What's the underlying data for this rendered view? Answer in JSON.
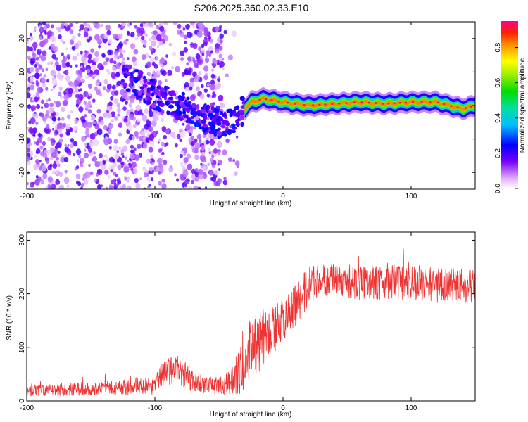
{
  "title": "S206.2025.360.02.33.E10",
  "chart_data": [
    {
      "type": "heatmap",
      "name": "spectrogram",
      "xlabel": "Height of straight line (km)",
      "ylabel": "Frequency (Hz)",
      "xlim": [
        -200,
        150
      ],
      "ylim": [
        -25,
        25
      ],
      "xticks": [
        -200,
        -100,
        0,
        100
      ],
      "yticks": [
        -20,
        -10,
        0,
        10,
        20
      ],
      "ridge": {
        "description_points": [
          [
            -120,
            8
          ],
          [
            -100,
            3
          ],
          [
            -80,
            0
          ],
          [
            -60,
            -4
          ],
          [
            -45,
            -6
          ],
          [
            -35,
            -3
          ],
          [
            -25,
            1
          ],
          [
            -15,
            2
          ],
          [
            0,
            1
          ],
          [
            20,
            0
          ],
          [
            40,
            0.5
          ],
          [
            60,
            1
          ],
          [
            80,
            0.5
          ],
          [
            100,
            1
          ],
          [
            120,
            1
          ],
          [
            140,
            -1
          ],
          [
            150,
            0
          ]
        ]
      }
    },
    {
      "type": "colorbar",
      "name": "amplitude-colorbar",
      "label": "Normalized spectral amplitude",
      "range": [
        0.0,
        0.95
      ],
      "ticks": [
        "0.0",
        "0.2",
        "0.4",
        "0.6",
        "0.8"
      ],
      "tick_values": [
        0.0,
        0.2,
        0.4,
        0.6,
        0.8
      ]
    },
    {
      "type": "line",
      "name": "snr-line",
      "xlabel": "Height of straight line (km)",
      "ylabel": "SNR (10 * v/v)",
      "xlim": [
        -200,
        150
      ],
      "ylim": [
        0,
        315
      ],
      "xticks": [
        -200,
        -100,
        0,
        100
      ],
      "yticks": [
        0,
        100,
        200,
        300
      ],
      "color": "#ee3333",
      "envelope": {
        "x": [
          -200,
          -150,
          -100,
          -95,
          -90,
          -85,
          -80,
          -75,
          -70,
          -60,
          -50,
          -40,
          -35,
          -30,
          -25,
          -20,
          -10,
          0,
          10,
          20,
          30,
          40,
          60,
          80,
          100,
          120,
          150
        ],
        "mean": [
          20,
          22,
          28,
          45,
          55,
          60,
          58,
          45,
          35,
          30,
          28,
          35,
          50,
          70,
          100,
          110,
          130,
          150,
          180,
          215,
          225,
          225,
          220,
          220,
          225,
          215,
          215
        ],
        "spread": [
          14,
          15,
          20,
          30,
          35,
          35,
          35,
          30,
          25,
          20,
          20,
          30,
          55,
          65,
          80,
          80,
          60,
          50,
          50,
          45,
          40,
          40,
          40,
          40,
          45,
          40,
          40
        ]
      }
    }
  ]
}
